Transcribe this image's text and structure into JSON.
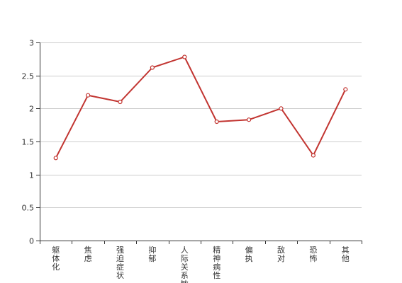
{
  "colors": {
    "line": "#c23531",
    "grid": "#cccccc",
    "axis": "#333333",
    "text": "#333333"
  },
  "chart_data": {
    "type": "line",
    "title": "",
    "xlabel": "",
    "ylabel": "",
    "categories": [
      "躯体化",
      "焦虑",
      "强迫症状",
      "抑郁",
      "人际关系敏感",
      "精神病性",
      "偏执",
      "敌对",
      "恐怖",
      "其他"
    ],
    "series": [
      {
        "values": [
          1.25,
          2.2,
          2.1,
          2.62,
          2.78,
          1.8,
          1.83,
          2.0,
          1.29,
          2.29
        ]
      }
    ],
    "ylim": [
      0,
      3
    ],
    "yticks": [
      "0",
      "0.5",
      "1",
      "1.5",
      "2",
      "2.5",
      "3"
    ],
    "grid": true,
    "legend": "none"
  }
}
